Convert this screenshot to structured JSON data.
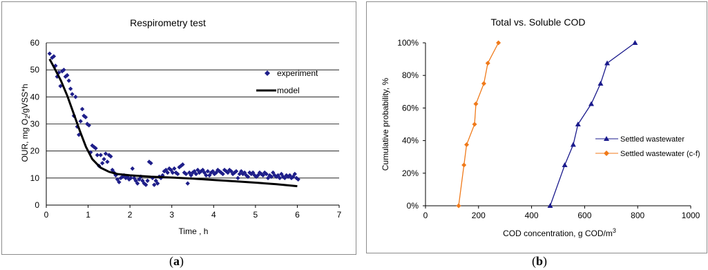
{
  "captions": {
    "a": {
      "open": "(",
      "letter": "a",
      "close": ")"
    },
    "b": {
      "open": "(",
      "letter": "b",
      "close": ")"
    }
  },
  "chart_data": [
    {
      "type": "scatter",
      "title": "Respirometry test",
      "xlabel": "Time , h",
      "ylabel_parts": [
        "OUR, mg O",
        "2",
        "/gVSS*h"
      ],
      "xlim": [
        0,
        7
      ],
      "ylim": [
        0,
        60
      ],
      "xticks": [
        "0",
        "1",
        "2",
        "3",
        "4",
        "5",
        "6",
        "7"
      ],
      "yticks": [
        "0",
        "10",
        "20",
        "30",
        "40",
        "50",
        "60"
      ],
      "grid": "horizontal",
      "legend_placement": "top-right",
      "colors": {
        "experiment": "#1f1f8a",
        "model": "#000000"
      },
      "series": [
        {
          "name": "experiment",
          "kind": "markers",
          "marker": "diamond",
          "points": [
            [
              0.08,
              56
            ],
            [
              0.14,
              54.5
            ],
            [
              0.18,
              55
            ],
            [
              0.22,
              51.5
            ],
            [
              0.26,
              47.5
            ],
            [
              0.3,
              49
            ],
            [
              0.34,
              44
            ],
            [
              0.38,
              49.5
            ],
            [
              0.42,
              50
            ],
            [
              0.46,
              47.5
            ],
            [
              0.5,
              48
            ],
            [
              0.54,
              46
            ],
            [
              0.58,
              43
            ],
            [
              0.62,
              41
            ],
            [
              0.66,
              33
            ],
            [
              0.7,
              40
            ],
            [
              0.74,
              29
            ],
            [
              0.78,
              26
            ],
            [
              0.82,
              31
            ],
            [
              0.86,
              35.5
            ],
            [
              0.9,
              33
            ],
            [
              0.94,
              32.5
            ],
            [
              0.98,
              30
            ],
            [
              1.02,
              29.5
            ],
            [
              1.06,
              19.5
            ],
            [
              1.1,
              22
            ],
            [
              1.14,
              21.5
            ],
            [
              1.18,
              21
            ],
            [
              1.22,
              18.5
            ],
            [
              1.26,
              14.5
            ],
            [
              1.3,
              18.5
            ],
            [
              1.34,
              15.5
            ],
            [
              1.38,
              17
            ],
            [
              1.42,
              19
            ],
            [
              1.46,
              16
            ],
            [
              1.5,
              18.5
            ],
            [
              1.54,
              18
            ],
            [
              1.58,
              13
            ],
            [
              1.62,
              12
            ],
            [
              1.66,
              11
            ],
            [
              1.7,
              9.5
            ],
            [
              1.74,
              8.5
            ],
            [
              1.78,
              10
            ],
            [
              1.82,
              10.5
            ],
            [
              1.86,
              11
            ],
            [
              1.9,
              10
            ],
            [
              1.94,
              10.5
            ],
            [
              1.98,
              9.5
            ],
            [
              2.02,
              10
            ],
            [
              2.06,
              13.5
            ],
            [
              2.1,
              10
            ],
            [
              2.14,
              9
            ],
            [
              2.18,
              8
            ],
            [
              2.22,
              9.5
            ],
            [
              2.26,
              10.5
            ],
            [
              2.3,
              9
            ],
            [
              2.34,
              8
            ],
            [
              2.38,
              7.5
            ],
            [
              2.42,
              9
            ],
            [
              2.46,
              16
            ],
            [
              2.5,
              15.5
            ],
            [
              2.54,
              10
            ],
            [
              2.58,
              7.5
            ],
            [
              2.62,
              9
            ],
            [
              2.66,
              8
            ],
            [
              2.7,
              10.5
            ],
            [
              2.74,
              10
            ],
            [
              2.78,
              11
            ],
            [
              2.82,
              12.5
            ],
            [
              2.86,
              13
            ],
            [
              2.9,
              12
            ],
            [
              2.94,
              13.5
            ],
            [
              2.98,
              13
            ],
            [
              3.02,
              12
            ],
            [
              3.06,
              13.5
            ],
            [
              3.1,
              12
            ],
            [
              3.14,
              11.5
            ],
            [
              3.18,
              14
            ],
            [
              3.22,
              14.5
            ],
            [
              3.26,
              15
            ],
            [
              3.3,
              12
            ],
            [
              3.34,
              11.5
            ],
            [
              3.38,
              8
            ],
            [
              3.42,
              12
            ],
            [
              3.46,
              11
            ],
            [
              3.5,
              12
            ],
            [
              3.54,
              12.5
            ],
            [
              3.58,
              11.5
            ],
            [
              3.62,
              13
            ],
            [
              3.66,
              12
            ],
            [
              3.7,
              12.5
            ],
            [
              3.74,
              13
            ],
            [
              3.78,
              12
            ],
            [
              3.82,
              11
            ],
            [
              3.86,
              12.5
            ],
            [
              3.9,
              11
            ],
            [
              3.94,
              12
            ],
            [
              3.98,
              12.5
            ],
            [
              4.02,
              11.5
            ],
            [
              4.06,
              12
            ],
            [
              4.1,
              13
            ],
            [
              4.14,
              12.5
            ],
            [
              4.18,
              12
            ],
            [
              4.22,
              11.5
            ],
            [
              4.26,
              13
            ],
            [
              4.3,
              12.5
            ],
            [
              4.34,
              12
            ],
            [
              4.38,
              13
            ],
            [
              4.42,
              12.5
            ],
            [
              4.46,
              11.5
            ],
            [
              4.5,
              12
            ],
            [
              4.54,
              12.5
            ],
            [
              4.58,
              10
            ],
            [
              4.62,
              11.5
            ],
            [
              4.66,
              12.5
            ],
            [
              4.7,
              11.5
            ],
            [
              4.74,
              12
            ],
            [
              4.78,
              11
            ],
            [
              4.82,
              10.5
            ],
            [
              4.86,
              12
            ],
            [
              4.9,
              11.5
            ],
            [
              4.94,
              12
            ],
            [
              4.98,
              11
            ],
            [
              5.02,
              10.5
            ],
            [
              5.06,
              11
            ],
            [
              5.1,
              12
            ],
            [
              5.14,
              11.5
            ],
            [
              5.18,
              11
            ],
            [
              5.22,
              12
            ],
            [
              5.26,
              11.5
            ],
            [
              5.3,
              10
            ],
            [
              5.34,
              11
            ],
            [
              5.38,
              10.5
            ],
            [
              5.42,
              12
            ],
            [
              5.46,
              11
            ],
            [
              5.5,
              10.5
            ],
            [
              5.54,
              11
            ],
            [
              5.58,
              10
            ],
            [
              5.62,
              11.5
            ],
            [
              5.66,
              10.5
            ],
            [
              5.7,
              10
            ],
            [
              5.74,
              11
            ],
            [
              5.78,
              10.5
            ],
            [
              5.82,
              11
            ],
            [
              5.86,
              10
            ],
            [
              5.9,
              10.5
            ],
            [
              5.94,
              11.5
            ],
            [
              5.98,
              10
            ],
            [
              6.02,
              9.5
            ]
          ]
        },
        {
          "name": "model",
          "kind": "line",
          "points": [
            [
              0.08,
              54
            ],
            [
              0.2,
              50.5
            ],
            [
              0.35,
              46
            ],
            [
              0.5,
              40.5
            ],
            [
              0.65,
              34
            ],
            [
              0.8,
              27.5
            ],
            [
              0.95,
              21.5
            ],
            [
              1.1,
              17
            ],
            [
              1.3,
              13.8
            ],
            [
              1.5,
              12.3
            ],
            [
              1.7,
              11.5
            ],
            [
              2.0,
              11
            ],
            [
              2.5,
              10.5
            ],
            [
              3.0,
              10.2
            ],
            [
              3.5,
              9.8
            ],
            [
              4.0,
              9.3
            ],
            [
              4.5,
              8.8
            ],
            [
              5.0,
              8.3
            ],
            [
              5.5,
              7.7
            ],
            [
              6.0,
              7
            ]
          ]
        }
      ]
    },
    {
      "type": "line",
      "title": "Total vs. Soluble COD",
      "xlabel_parts": [
        "COD concentration, g COD/m",
        "3"
      ],
      "ylabel": "Cumulative probability,  %",
      "xlim": [
        0,
        1000
      ],
      "ylim": [
        0,
        100
      ],
      "xticks": [
        "0",
        "200",
        "400",
        "600",
        "800",
        "1000"
      ],
      "yticks": [
        "0%",
        "20%",
        "40%",
        "60%",
        "80%",
        "100%"
      ],
      "grid": "none",
      "legend_placement": "right",
      "colors": {
        "settled": "#1a1a8c",
        "cf": "#f07a1a"
      },
      "series": [
        {
          "name": "Settled wastewater",
          "marker": "triangle",
          "color_key": "settled",
          "points": [
            [
              470,
              0
            ],
            [
              525,
              25
            ],
            [
              557,
              37.5
            ],
            [
              575,
              50
            ],
            [
              625,
              62.5
            ],
            [
              660,
              75
            ],
            [
              685,
              87.5
            ],
            [
              790,
              100
            ]
          ]
        },
        {
          "name": "Settled wastewater (c-f)",
          "marker": "diamond",
          "color_key": "cf",
          "points": [
            [
              125,
              0
            ],
            [
              145,
              25
            ],
            [
              155,
              37.5
            ],
            [
              185,
              50
            ],
            [
              190,
              62.5
            ],
            [
              220,
              75
            ],
            [
              235,
              87.5
            ],
            [
              275,
              100
            ]
          ]
        }
      ]
    }
  ]
}
